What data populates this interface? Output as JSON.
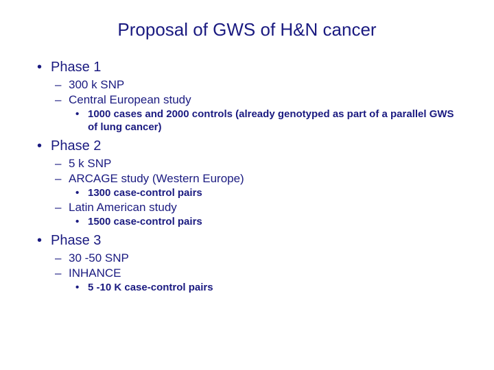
{
  "colors": {
    "text": "#1a1a80",
    "background": "#ffffff"
  },
  "typography": {
    "title_fontsize": 26,
    "lvl1_fontsize": 20,
    "lvl2_fontsize": 17,
    "lvl3_fontsize": 15,
    "lvl3_weight": 700,
    "font_family": "Verdana"
  },
  "title": "Proposal of GWS of H&N cancer",
  "outline": [
    {
      "label": "Phase 1",
      "children": [
        {
          "label": "300 k SNP"
        },
        {
          "label": "Central European study",
          "children": [
            {
              "label": "1000 cases and 2000 controls (already genotyped as part of a parallel GWS of lung cancer)"
            }
          ]
        }
      ]
    },
    {
      "label": "Phase 2",
      "children": [
        {
          "label": "5 k SNP"
        },
        {
          "label": "ARCAGE study (Western Europe)",
          "children": [
            {
              "label": "1300 case-control pairs"
            }
          ]
        },
        {
          "label": "Latin American study",
          "children": [
            {
              "label": "1500 case-control pairs"
            }
          ]
        }
      ]
    },
    {
      "label": "Phase 3",
      "children": [
        {
          "label": "30 -50 SNP"
        },
        {
          "label": "INHANCE",
          "children": [
            {
              "label": "5 -10 K case-control pairs"
            }
          ]
        }
      ]
    }
  ]
}
